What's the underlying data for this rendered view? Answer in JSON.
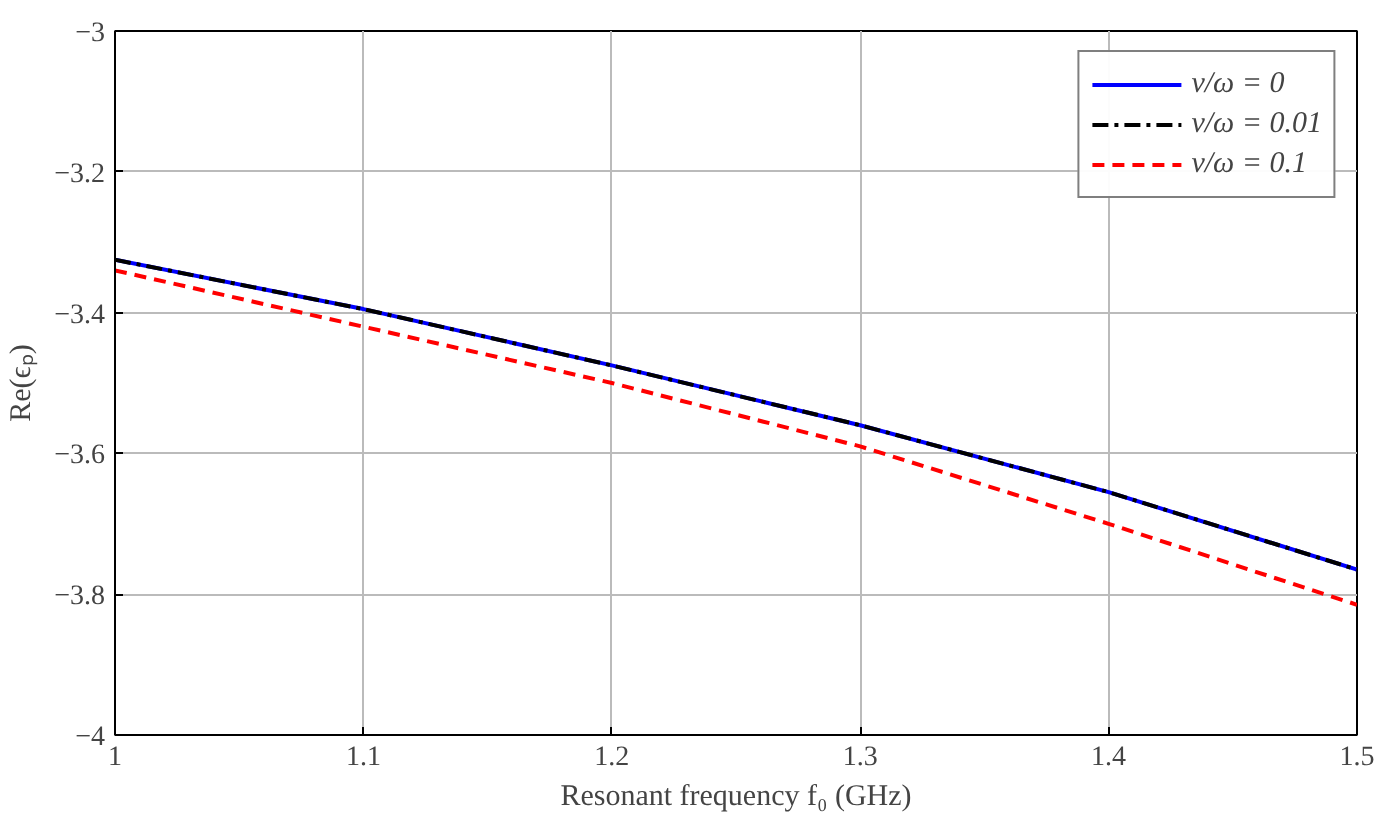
{
  "chart_data": {
    "type": "line",
    "xlabel": "Resonant frequency f₀ (GHz)",
    "ylabel": "Re(ϵₚ)",
    "x": [
      1,
      1.1,
      1.2,
      1.3,
      1.4,
      1.5
    ],
    "series": [
      {
        "name": "ν/ω = 0",
        "color": "#0000ff",
        "line_style": "solid",
        "values": [
          -3.325,
          -3.395,
          -3.475,
          -3.56,
          -3.655,
          -3.765
        ]
      },
      {
        "name": "ν/ω = 0.01",
        "color": "#000000",
        "line_style": "dashdot",
        "values": [
          -3.325,
          -3.395,
          -3.475,
          -3.56,
          -3.655,
          -3.765
        ]
      },
      {
        "name": "ν/ω = 0.1",
        "color": "#ff0000",
        "line_style": "dashed",
        "values": [
          -3.34,
          -3.42,
          -3.5,
          -3.59,
          -3.7,
          -3.815
        ]
      }
    ],
    "xlim": [
      1,
      1.5
    ],
    "ylim": [
      -4,
      -3
    ],
    "xticks": [
      1,
      1.1,
      1.2,
      1.3,
      1.4,
      1.5
    ],
    "yticks": [
      {
        "value": -4,
        "label": "−4"
      },
      {
        "value": -3.8,
        "label": "−3.8"
      },
      {
        "value": -3.6,
        "label": "−3.6"
      },
      {
        "value": -3.4,
        "label": "−3.4"
      },
      {
        "value": -3.2,
        "label": "−3.2"
      },
      {
        "value": -3,
        "label": "−3"
      }
    ],
    "grid": true,
    "legend": "top right"
  }
}
